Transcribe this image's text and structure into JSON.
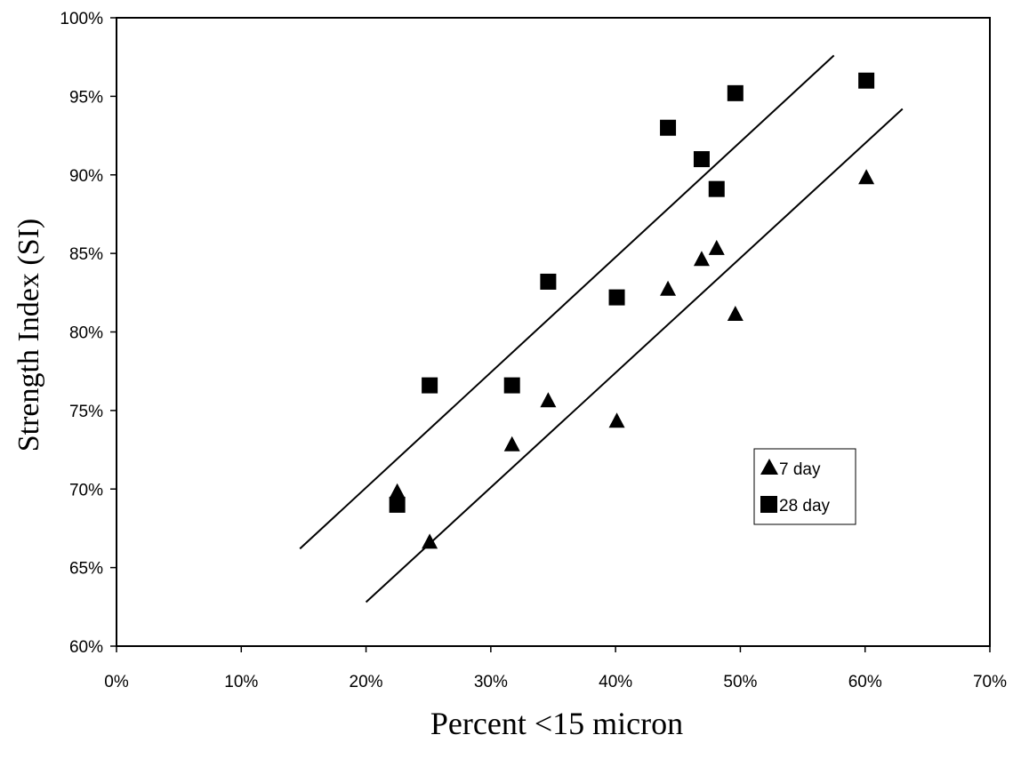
{
  "chart_data": {
    "type": "scatter",
    "xlabel": "Percent <15 micron",
    "ylabel": "Strength Index (SI)",
    "xlim": [
      0,
      70
    ],
    "ylim": [
      60,
      100
    ],
    "x_ticks": [
      "0%",
      "10%",
      "20%",
      "30%",
      "40%",
      "50%",
      "60%",
      "70%"
    ],
    "y_ticks": [
      "60%",
      "65%",
      "70%",
      "75%",
      "80%",
      "85%",
      "90%",
      "95%",
      "100%"
    ],
    "grid": false,
    "legend_position": "right",
    "series": [
      {
        "name": "7 day",
        "marker": "triangle",
        "color": "#000000",
        "x": [
          22.5,
          25.1,
          31.7,
          34.6,
          40.1,
          44.2,
          46.9,
          48.1,
          49.6,
          60.1
        ],
        "y": [
          69.8,
          66.6,
          72.8,
          75.6,
          74.3,
          82.7,
          84.6,
          85.3,
          81.1,
          89.8
        ]
      },
      {
        "name": "28 day",
        "marker": "square",
        "color": "#000000",
        "x": [
          22.5,
          25.1,
          31.7,
          34.6,
          40.1,
          44.2,
          46.9,
          48.1,
          49.6,
          60.1
        ],
        "y": [
          69.0,
          76.6,
          76.6,
          83.2,
          82.2,
          93.0,
          91.0,
          89.1,
          95.2,
          96.0
        ]
      }
    ],
    "trend_lines": [
      {
        "series": "28 day",
        "x": [
          14.7,
          57.5
        ],
        "y": [
          66.2,
          97.6
        ]
      },
      {
        "series": "7 day",
        "x": [
          20.0,
          63.0
        ],
        "y": [
          62.8,
          94.2
        ]
      }
    ]
  }
}
